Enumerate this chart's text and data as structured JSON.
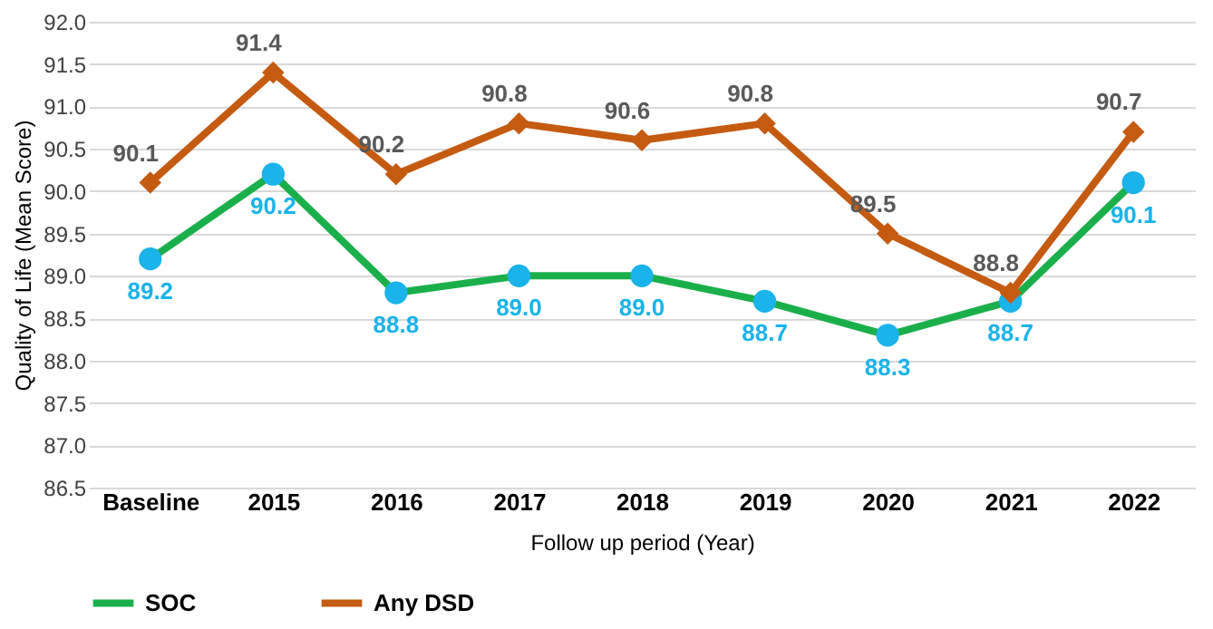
{
  "chart_data": {
    "type": "line",
    "xlabel": "Follow up period (Year)",
    "ylabel": "Quality of Life (Mean Score)",
    "categories": [
      "Baseline",
      "2015",
      "2016",
      "2017",
      "2018",
      "2019",
      "2020",
      "2021",
      "2022"
    ],
    "series": [
      {
        "name": "SOC",
        "color": "#1aaf4b",
        "marker": "circle",
        "colors": [
          "#1ab3ea",
          "#1ab3ea",
          "#1ab3ea",
          "#1ab3ea",
          "#1ab3ea",
          "#1ab3ea",
          "#1ab3ea",
          "#1ab3ea",
          "#1ab3ea"
        ],
        "values": [
          89.2,
          90.2,
          88.8,
          89.0,
          89.0,
          88.7,
          88.3,
          88.7,
          90.1
        ],
        "value_labels": [
          "89.2",
          "90.2",
          "88.8",
          "89.0",
          "89.0",
          "88.7",
          "88.3",
          "88.7",
          "90.1"
        ]
      },
      {
        "name": "Any DSD",
        "color": "#c55a11",
        "marker": "diamond",
        "values": [
          90.1,
          91.4,
          90.2,
          90.8,
          90.6,
          90.8,
          89.5,
          88.8,
          90.7
        ],
        "value_labels": [
          "90.1",
          "91.4",
          "90.2",
          "90.8",
          "90.6",
          "90.8",
          "89.5",
          "88.8",
          "90.7"
        ]
      }
    ],
    "ylim": [
      86.5,
      92.0
    ],
    "yticks": [
      86.5,
      {
        "value": 87,
        "label": "87.0"
      },
      87.5,
      {
        "value": 88,
        "label": "88.0"
      },
      88.5,
      {
        "value": 89,
        "label": "89.0"
      },
      89.5,
      {
        "value": 90,
        "label": "90.0"
      },
      90.5,
      {
        "value": 91,
        "label": "91.0"
      },
      91.5,
      {
        "value": 92,
        "label": "92.0"
      }
    ],
    "grid": "y",
    "legend": "bottom",
    "line_style": "solid"
  }
}
